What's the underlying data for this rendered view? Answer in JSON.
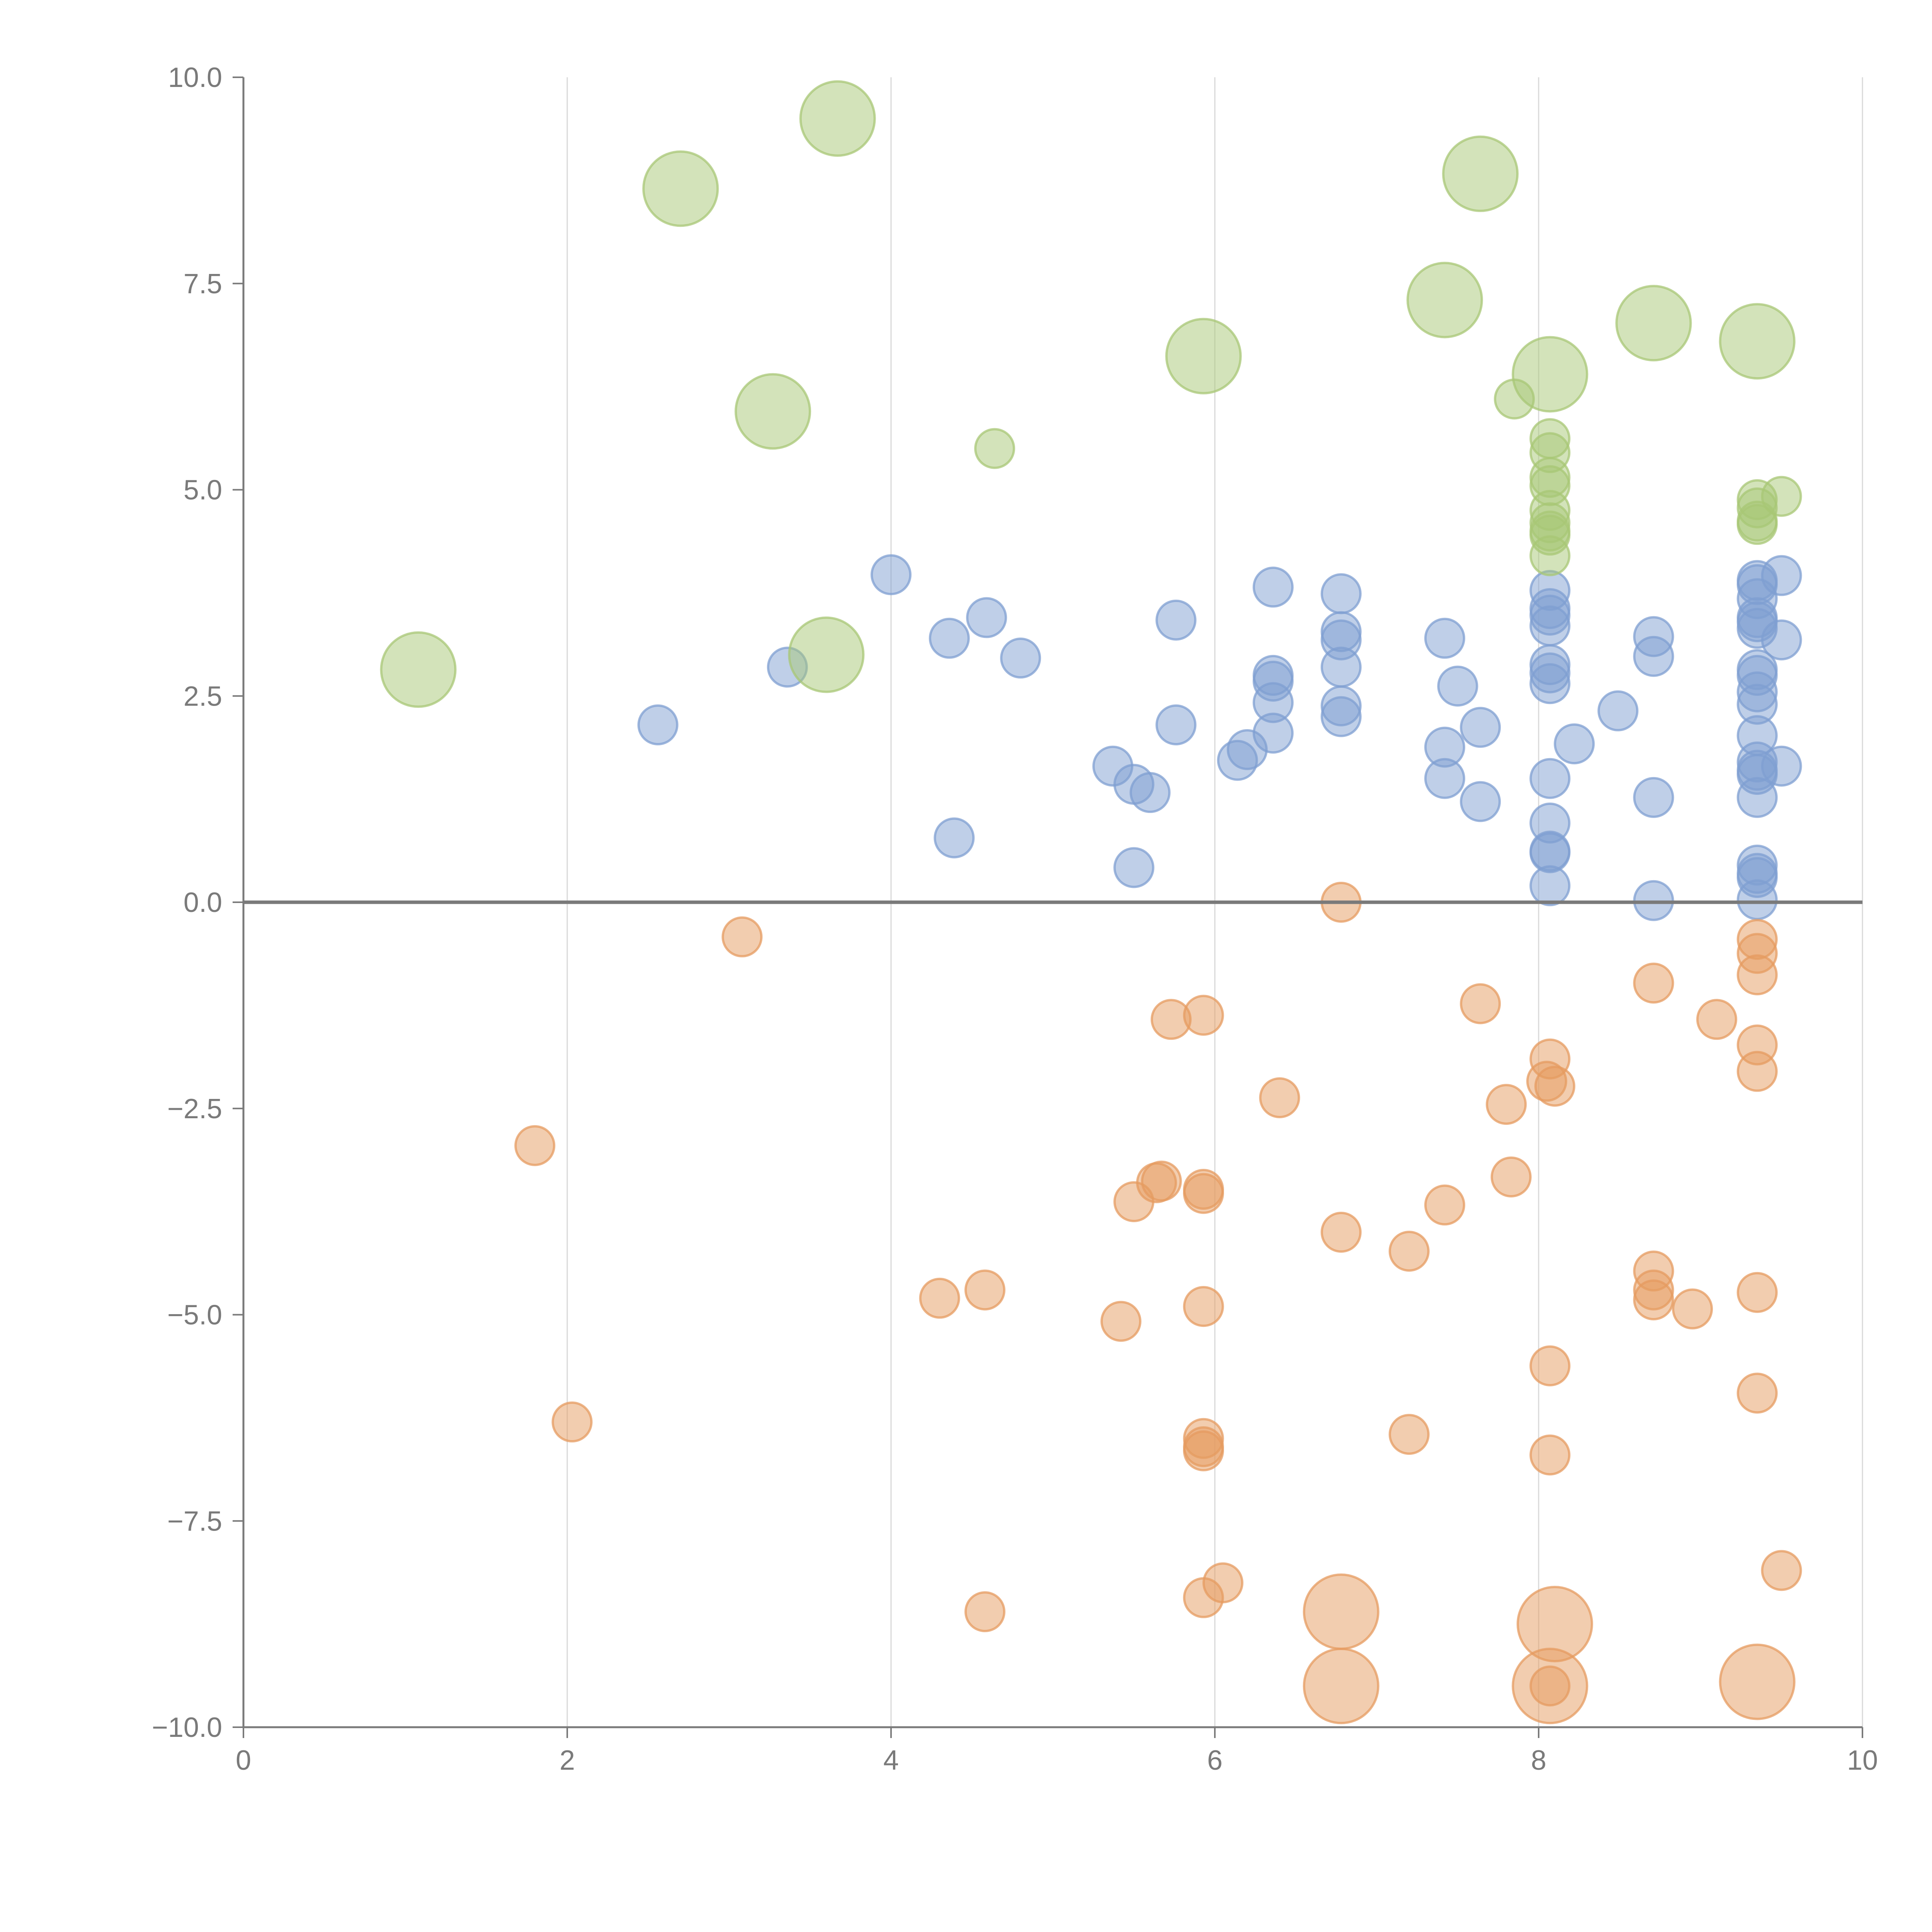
{
  "chart_data": {
    "type": "scatter",
    "title": "",
    "xlabel": "",
    "ylabel": "",
    "xlim": [
      0,
      10
    ],
    "ylim": [
      -10,
      10
    ],
    "x_ticks": [
      0,
      2,
      4,
      6,
      8,
      10
    ],
    "x_tick_labels": [
      "0",
      "2",
      "4",
      "6",
      "8",
      "10"
    ],
    "y_ticks": [
      -10,
      -7.5,
      -5,
      -2.5,
      0,
      2.5,
      5,
      7.5,
      10
    ],
    "y_tick_labels": [
      "−10.0",
      "−7.5",
      "−5.0",
      "−2.5",
      "0.0",
      "2.5",
      "5.0",
      "7.5",
      "10.0"
    ],
    "grid": {
      "vertical": true,
      "horizontal": false
    },
    "zero_line": true,
    "legend": "none",
    "colors": [
      "#7f9fd2",
      "#e69b60",
      "#a8c776"
    ],
    "series": [
      {
        "color": "#7f9fd2",
        "points": [
          [
            2.56,
            2.15,
            1
          ],
          [
            3.36,
            2.85,
            1
          ],
          [
            4.0,
            3.97,
            1
          ],
          [
            4.36,
            3.2,
            1
          ],
          [
            4.59,
            3.45,
            1
          ],
          [
            4.8,
            2.96,
            1
          ],
          [
            4.39,
            0.78,
            1
          ],
          [
            5.37,
            1.65,
            1
          ],
          [
            5.5,
            1.43,
            1
          ],
          [
            5.6,
            1.33,
            1
          ],
          [
            5.5,
            0.42,
            1
          ],
          [
            5.76,
            3.42,
            1
          ],
          [
            5.76,
            2.15,
            1
          ],
          [
            6.14,
            1.72,
            1
          ],
          [
            6.2,
            1.85,
            1
          ],
          [
            6.36,
            3.82,
            1
          ],
          [
            6.36,
            2.75,
            1
          ],
          [
            6.36,
            2.68,
            1
          ],
          [
            6.36,
            2.42,
            1
          ],
          [
            6.36,
            2.05,
            1
          ],
          [
            6.78,
            3.74,
            1
          ],
          [
            6.78,
            3.28,
            1
          ],
          [
            6.78,
            3.18,
            1
          ],
          [
            6.78,
            2.85,
            1
          ],
          [
            6.78,
            2.38,
            1
          ],
          [
            6.78,
            2.25,
            1
          ],
          [
            7.42,
            3.2,
            1
          ],
          [
            7.42,
            1.88,
            1
          ],
          [
            7.42,
            1.5,
            1
          ],
          [
            7.5,
            2.62,
            1
          ],
          [
            7.64,
            2.12,
            1
          ],
          [
            7.64,
            1.22,
            1
          ],
          [
            8.07,
            3.78,
            1
          ],
          [
            8.07,
            3.56,
            1
          ],
          [
            8.07,
            3.48,
            1
          ],
          [
            8.07,
            3.35,
            1
          ],
          [
            8.07,
            2.88,
            1
          ],
          [
            8.07,
            2.78,
            1
          ],
          [
            8.07,
            2.65,
            1
          ],
          [
            8.07,
            1.5,
            1
          ],
          [
            8.07,
            0.96,
            1
          ],
          [
            8.07,
            0.62,
            1
          ],
          [
            8.07,
            0.6,
            1
          ],
          [
            8.07,
            0.2,
            1
          ],
          [
            8.22,
            1.92,
            1
          ],
          [
            8.49,
            2.32,
            1
          ],
          [
            8.71,
            3.22,
            1
          ],
          [
            8.71,
            2.98,
            1
          ],
          [
            8.71,
            1.27,
            1
          ],
          [
            8.71,
            0.02,
            1
          ],
          [
            9.35,
            3.9,
            1
          ],
          [
            9.35,
            3.85,
            1
          ],
          [
            9.35,
            3.68,
            1
          ],
          [
            9.35,
            3.45,
            1
          ],
          [
            9.35,
            3.4,
            1
          ],
          [
            9.35,
            3.32,
            1
          ],
          [
            9.35,
            2.82,
            1
          ],
          [
            9.35,
            2.75,
            1
          ],
          [
            9.35,
            2.55,
            1
          ],
          [
            9.35,
            2.4,
            1
          ],
          [
            9.35,
            2.02,
            1
          ],
          [
            9.35,
            1.7,
            1
          ],
          [
            9.35,
            1.6,
            1
          ],
          [
            9.35,
            1.55,
            1
          ],
          [
            9.35,
            1.27,
            1
          ],
          [
            9.35,
            0.45,
            1
          ],
          [
            9.35,
            0.35,
            1
          ],
          [
            9.35,
            0.3,
            1
          ],
          [
            9.35,
            0.03,
            1
          ],
          [
            9.5,
            3.96,
            1
          ],
          [
            9.5,
            3.18,
            1
          ],
          [
            9.5,
            1.65,
            1
          ]
        ]
      },
      {
        "color": "#e69b60",
        "points": [
          [
            1.8,
            -2.95,
            1
          ],
          [
            2.03,
            -6.3,
            1
          ],
          [
            3.08,
            -0.42,
            1
          ],
          [
            4.3,
            -4.8,
            1
          ],
          [
            4.58,
            -4.7,
            1
          ],
          [
            4.58,
            -8.6,
            1
          ],
          [
            5.42,
            -5.08,
            1
          ],
          [
            5.5,
            -3.63,
            1
          ],
          [
            5.64,
            -3.4,
            1
          ],
          [
            5.67,
            -3.38,
            1
          ],
          [
            5.73,
            -1.42,
            1
          ],
          [
            5.93,
            -1.37,
            1
          ],
          [
            5.93,
            -3.48,
            1
          ],
          [
            5.93,
            -3.53,
            1
          ],
          [
            5.93,
            -4.9,
            1
          ],
          [
            5.93,
            -6.5,
            1
          ],
          [
            5.93,
            -6.6,
            1
          ],
          [
            5.93,
            -6.65,
            1
          ],
          [
            5.93,
            -8.43,
            1
          ],
          [
            6.05,
            -8.25,
            1
          ],
          [
            6.4,
            -2.37,
            1
          ],
          [
            6.78,
            0.0,
            1
          ],
          [
            6.78,
            -4.0,
            1
          ],
          [
            6.78,
            -8.6,
            2
          ],
          [
            6.78,
            -9.5,
            2
          ],
          [
            7.2,
            -4.23,
            1
          ],
          [
            7.2,
            -6.45,
            1
          ],
          [
            7.42,
            -3.67,
            1
          ],
          [
            7.64,
            -1.23,
            1
          ],
          [
            7.8,
            -2.45,
            1
          ],
          [
            7.83,
            -3.33,
            1
          ],
          [
            8.07,
            -1.9,
            1
          ],
          [
            8.05,
            -2.17,
            1
          ],
          [
            8.1,
            -2.23,
            1
          ],
          [
            8.07,
            -5.62,
            1
          ],
          [
            8.07,
            -6.7,
            1
          ],
          [
            8.1,
            -8.75,
            2
          ],
          [
            8.07,
            -9.5,
            2
          ],
          [
            8.07,
            -9.5,
            1
          ],
          [
            8.71,
            -0.98,
            1
          ],
          [
            8.71,
            -4.47,
            1
          ],
          [
            8.71,
            -4.7,
            1
          ],
          [
            8.71,
            -4.82,
            1
          ],
          [
            8.95,
            -4.93,
            1
          ],
          [
            9.1,
            -1.42,
            1
          ],
          [
            9.35,
            -0.45,
            1
          ],
          [
            9.35,
            -0.62,
            1
          ],
          [
            9.35,
            -0.88,
            1
          ],
          [
            9.35,
            -1.73,
            1
          ],
          [
            9.35,
            -2.05,
            1
          ],
          [
            9.35,
            -4.73,
            1
          ],
          [
            9.35,
            -5.95,
            1
          ],
          [
            9.35,
            -9.45,
            2
          ],
          [
            9.5,
            -8.1,
            1
          ]
        ]
      },
      {
        "color": "#a8c776",
        "points": [
          [
            1.08,
            2.82,
            2
          ],
          [
            2.7,
            8.65,
            2
          ],
          [
            3.67,
            9.5,
            2
          ],
          [
            3.27,
            5.95,
            2
          ],
          [
            3.6,
            3.0,
            2
          ],
          [
            4.64,
            5.5,
            1
          ],
          [
            5.93,
            6.62,
            2
          ],
          [
            7.42,
            7.3,
            2
          ],
          [
            7.64,
            8.83,
            2
          ],
          [
            7.85,
            6.1,
            1
          ],
          [
            8.07,
            6.4,
            2
          ],
          [
            8.07,
            5.62,
            1
          ],
          [
            8.07,
            5.45,
            1
          ],
          [
            8.07,
            5.15,
            1
          ],
          [
            8.07,
            5.05,
            1
          ],
          [
            8.07,
            4.75,
            1
          ],
          [
            8.07,
            4.6,
            1
          ],
          [
            8.07,
            4.5,
            1
          ],
          [
            8.07,
            4.45,
            1
          ],
          [
            8.07,
            4.2,
            1
          ],
          [
            8.71,
            7.02,
            2
          ],
          [
            9.35,
            6.8,
            2
          ],
          [
            9.35,
            4.88,
            1
          ],
          [
            9.35,
            4.78,
            1
          ],
          [
            9.35,
            4.62,
            1
          ],
          [
            9.35,
            4.58,
            1
          ],
          [
            9.5,
            4.92,
            1
          ]
        ]
      }
    ]
  }
}
